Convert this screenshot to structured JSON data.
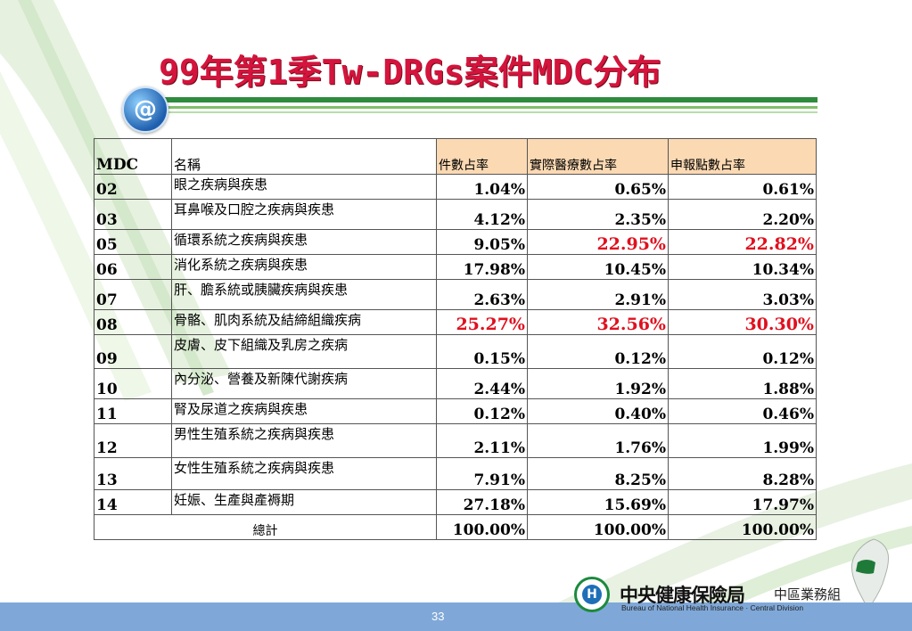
{
  "slide": {
    "title": "99年第1季Tw-DRGs案件MDC分布",
    "page_number": "33"
  },
  "table": {
    "headers": {
      "mdc": "MDC",
      "name": "名稱",
      "case_rate": "件數占率",
      "actual_points_rate": "實際醫療數占率",
      "declared_points_rate": "申報點數占率"
    },
    "rows": [
      {
        "code": "02",
        "name": "眼之疾病與疾患",
        "case_rate": "1.04%",
        "actual_points_rate": "0.65%",
        "declared_points_rate": "0.61%"
      },
      {
        "code": "03",
        "name": "耳鼻喉及口腔之疾病與疾患",
        "case_rate": "4.12%",
        "actual_points_rate": "2.35%",
        "declared_points_rate": "2.20%"
      },
      {
        "code": "05",
        "name": "循環系統之疾病與疾患",
        "case_rate": "9.05%",
        "actual_points_rate": "22.95%",
        "declared_points_rate": "22.82%"
      },
      {
        "code": "06",
        "name": "消化系統之疾病與疾患",
        "case_rate": "17.98%",
        "actual_points_rate": "10.45%",
        "declared_points_rate": "10.34%"
      },
      {
        "code": "07",
        "name": "肝、膽系統或胰臟疾病與疾患",
        "case_rate": "2.63%",
        "actual_points_rate": "2.91%",
        "declared_points_rate": "3.03%"
      },
      {
        "code": "08",
        "name": "骨骼、肌肉系統及結締組織疾病",
        "case_rate": "25.27%",
        "actual_points_rate": "32.56%",
        "declared_points_rate": "30.30%"
      },
      {
        "code": "09",
        "name": "皮膚、皮下組織及乳房之疾病",
        "case_rate": "0.15%",
        "actual_points_rate": "0.12%",
        "declared_points_rate": "0.12%"
      },
      {
        "code": "10",
        "name": "內分泌、營養及新陳代謝疾病",
        "case_rate": "2.44%",
        "actual_points_rate": "1.92%",
        "declared_points_rate": "1.88%"
      },
      {
        "code": "11",
        "name": "腎及尿道之疾病與疾患",
        "case_rate": "0.12%",
        "actual_points_rate": "0.40%",
        "declared_points_rate": "0.46%"
      },
      {
        "code": "12",
        "name": "男性生殖系統之疾病與疾患",
        "case_rate": "2.11%",
        "actual_points_rate": "1.76%",
        "declared_points_rate": "1.99%"
      },
      {
        "code": "13",
        "name": "女性生殖系統之疾病與疾患",
        "case_rate": "7.91%",
        "actual_points_rate": "8.25%",
        "declared_points_rate": "8.28%"
      },
      {
        "code": "14",
        "name": "妊娠、生產與產褥期",
        "case_rate": "27.18%",
        "actual_points_rate": "15.69%",
        "declared_points_rate": "17.97%"
      }
    ],
    "total": {
      "label": "總計",
      "case_rate": "100.00%",
      "actual_points_rate": "100.00%",
      "declared_points_rate": "100.00%"
    },
    "highlight_color": "#e0101e",
    "header_fill": "#fbd9b3"
  },
  "footer": {
    "org_name": "中央健康保險局",
    "org_division": "中區業務組",
    "org_english": "Bureau of National Health Insurance · Central Division",
    "bar_color": "#7fa8d8"
  },
  "icons": {
    "title_icon": "at-sign-icon",
    "logo": "nhi-logo-icon",
    "map": "taiwan-map-icon"
  }
}
